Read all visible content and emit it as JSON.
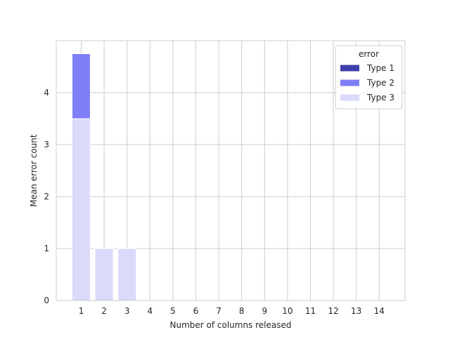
{
  "chart_data": {
    "type": "bar",
    "stacked": true,
    "categories": [
      "1",
      "2",
      "3",
      "4",
      "5",
      "6",
      "7",
      "8",
      "9",
      "10",
      "11",
      "12",
      "13",
      "14"
    ],
    "series": [
      {
        "name": "Type 3",
        "color": "#dadafb",
        "values": [
          3.5,
          1.0,
          1.0,
          0,
          0,
          0,
          0,
          0,
          0,
          0,
          0,
          0,
          0,
          0
        ]
      },
      {
        "name": "Type 2",
        "color": "#7f7ff7",
        "values": [
          1.25,
          0,
          0,
          0,
          0,
          0,
          0,
          0,
          0,
          0,
          0,
          0,
          0,
          0
        ]
      },
      {
        "name": "Type 1",
        "color": "#3f3fab",
        "values": [
          0,
          0,
          0,
          0,
          0,
          0,
          0,
          0,
          0,
          0,
          0,
          0,
          0,
          0
        ]
      }
    ],
    "xlabel": "Number of columns released",
    "ylabel": "Mean error count",
    "ylim": [
      0,
      5
    ],
    "yticks": [
      "0",
      "1",
      "2",
      "3",
      "4"
    ],
    "grid": true,
    "legend": {
      "title": "error",
      "placement": "top-right",
      "entries": [
        {
          "label": "Type 1",
          "color": "#3f3fab"
        },
        {
          "label": "Type 2",
          "color": "#7f7ff7"
        },
        {
          "label": "Type 3",
          "color": "#dadafb"
        }
      ]
    }
  }
}
